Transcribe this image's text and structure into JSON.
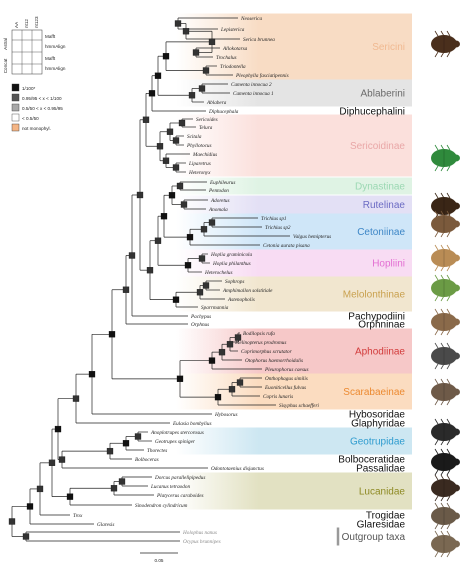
{
  "legend": {
    "header_cols": [
      "AA",
      "nt12",
      "nt123"
    ],
    "header_rows": [
      {
        "group": "Astral",
        "rows": [
          "Mafft",
          "hmmAlign"
        ]
      },
      {
        "group": "Concat",
        "rows": [
          "Mafft",
          "hmmAlign"
        ]
      }
    ],
    "support_items": [
      {
        "label": "1/100*",
        "color": "#111111"
      },
      {
        "label": "0.95/95 < x < 1/100",
        "color": "#555555"
      },
      {
        "label": "0.5/50 < x < 0.95/95",
        "color": "#a8a8a8"
      },
      {
        "label": "< 0.5/50",
        "color": "#ffffff"
      },
      {
        "label": "not monophyl.",
        "color": "#f4b585"
      }
    ]
  },
  "colors": {
    "Sericini": "#f8dcc4",
    "Ablaberini": "#e4e4e4",
    "Sericoidinae": "#fbe0dc",
    "Dynastinae": "#dff3e4",
    "Rutelinae": "#e3e0f5",
    "Cetoniinae": "#cfe6f8",
    "Hopliini": "#f8dcf3",
    "Melolonthinae": "#f1e6cf",
    "Aphodiinae": "#f6c8c8",
    "Scarabaeinae": "#fbdcc0",
    "Geotrupidae": "#cde7f2",
    "Lucanidae": "#e2e1c2"
  },
  "taxa": [
    "Neoserica",
    "Lepisterica",
    "Serica brunnea",
    "Allokotarsa",
    "Trochalus",
    "Triodontella",
    "Pleophylla fasciatipennis",
    "Camenta innocua 2",
    "Camenta innocua 1",
    "Ablabera",
    "Diphucephala",
    "Sericoides",
    "Telura",
    "Scitala",
    "Phyllotocus",
    "Maechidius",
    "Liparetrus",
    "Heteronyx",
    "Euphileurus",
    "Pentodon",
    "Adoretus",
    "Anomala",
    "Trichius sp1",
    "Trichius sp2",
    "Valgus hemipterus",
    "Cetonia aurata pisana",
    "Hoplia graminicola",
    "Hoplia philanthus",
    "Heterochelus",
    "Sophrops",
    "Amphimallon solstitiale",
    "Astenopholis",
    "Sparrmannia",
    "Pachypus",
    "Orphnus",
    "Bodilopsis rufa",
    "Melinopterus prodromus",
    "Coprimorphus scrutator",
    "Otophorus haemorrhoidalis",
    "Pleurophorus caesus",
    "Onthophagus similis",
    "Euoniticellus fulvus",
    "Copris lunaris",
    "Sisyphus schaefferi",
    "Hybosorus",
    "Eulasia bombylius",
    "Anoplotrupes stercorosus",
    "Geotrupes spiniger",
    "Thorectes",
    "Bolboceras",
    "Odontotaenius disjunctus",
    "Dorcus parallelipipedus",
    "Lucanus tetraodon",
    "Platycerus caraboides",
    "Sinodendron cylindricum",
    "Trox",
    "Glaresis",
    "Holophus nanus",
    "Ocypus brunnipes"
  ],
  "groups": [
    {
      "label": "Sericini",
      "first": 0,
      "last": 6,
      "bg": "#f8dcc4",
      "fg": "#f0b991"
    },
    {
      "label": "Ablaberini",
      "first": 7,
      "last": 9,
      "bg": "#e4e4e4",
      "fg": "#6a6a6a"
    },
    {
      "label": "Diphucephalini",
      "first": 10,
      "last": 10,
      "bg": "",
      "fg": "#111111"
    },
    {
      "label": "Sericoidinae",
      "first": 11,
      "last": 17,
      "bg": "#fbe0dc",
      "fg": "#e9a7a7"
    },
    {
      "label": "Dynastinae",
      "first": 18,
      "last": 19,
      "bg": "#dff3e4",
      "fg": "#9cd8b3"
    },
    {
      "label": "Rutelinae",
      "first": 20,
      "last": 21,
      "bg": "#e3e0f5",
      "fg": "#6b6bc3"
    },
    {
      "label": "Cetoniinae",
      "first": 22,
      "last": 25,
      "bg": "#cfe6f8",
      "fg": "#3d86c6"
    },
    {
      "label": "Hopliini",
      "first": 26,
      "last": 28,
      "bg": "#f8dcf3",
      "fg": "#e36fd2"
    },
    {
      "label": "Melolonthinae",
      "first": 29,
      "last": 32,
      "bg": "#f1e6cf",
      "fg": "#c9a14f"
    },
    {
      "label": "Pachypodiini",
      "first": 33,
      "last": 33,
      "bg": "",
      "fg": "#111111"
    },
    {
      "label": "Orphninae",
      "first": 34,
      "last": 34,
      "bg": "",
      "fg": "#111111"
    },
    {
      "label": "Aphodiinae",
      "first": 35,
      "last": 39,
      "bg": "#f6c8c8",
      "fg": "#d23b3b"
    },
    {
      "label": "Scarabaeinae",
      "first": 40,
      "last": 43,
      "bg": "#fbdcc0",
      "fg": "#ec8a31"
    },
    {
      "label": "Hybosoridae",
      "first": 44,
      "last": 44,
      "bg": "",
      "fg": "#111111"
    },
    {
      "label": "Glaphyridae",
      "first": 45,
      "last": 45,
      "bg": "",
      "fg": "#111111"
    },
    {
      "label": "Geotrupidae",
      "first": 46,
      "last": 48,
      "bg": "#cde7f2",
      "fg": "#2f9ccf"
    },
    {
      "label": "Bolboceratidae",
      "first": 49,
      "last": 49,
      "bg": "",
      "fg": "#111111"
    },
    {
      "label": "Passalidae",
      "first": 50,
      "last": 50,
      "bg": "",
      "fg": "#111111"
    },
    {
      "label": "Lucanidae",
      "first": 51,
      "last": 54,
      "bg": "#e2e1c2",
      "fg": "#8e8a24"
    },
    {
      "label": "Trogidae",
      "first": 55,
      "last": 55,
      "bg": "",
      "fg": "#111111"
    },
    {
      "label": "Glaresidae",
      "first": 56,
      "last": 56,
      "bg": "",
      "fg": "#111111"
    },
    {
      "label": "Outgroup taxa",
      "first": 57,
      "last": 58,
      "bg": "",
      "fg": "#555555"
    }
  ],
  "scale_bar": {
    "label": "0.05"
  }
}
